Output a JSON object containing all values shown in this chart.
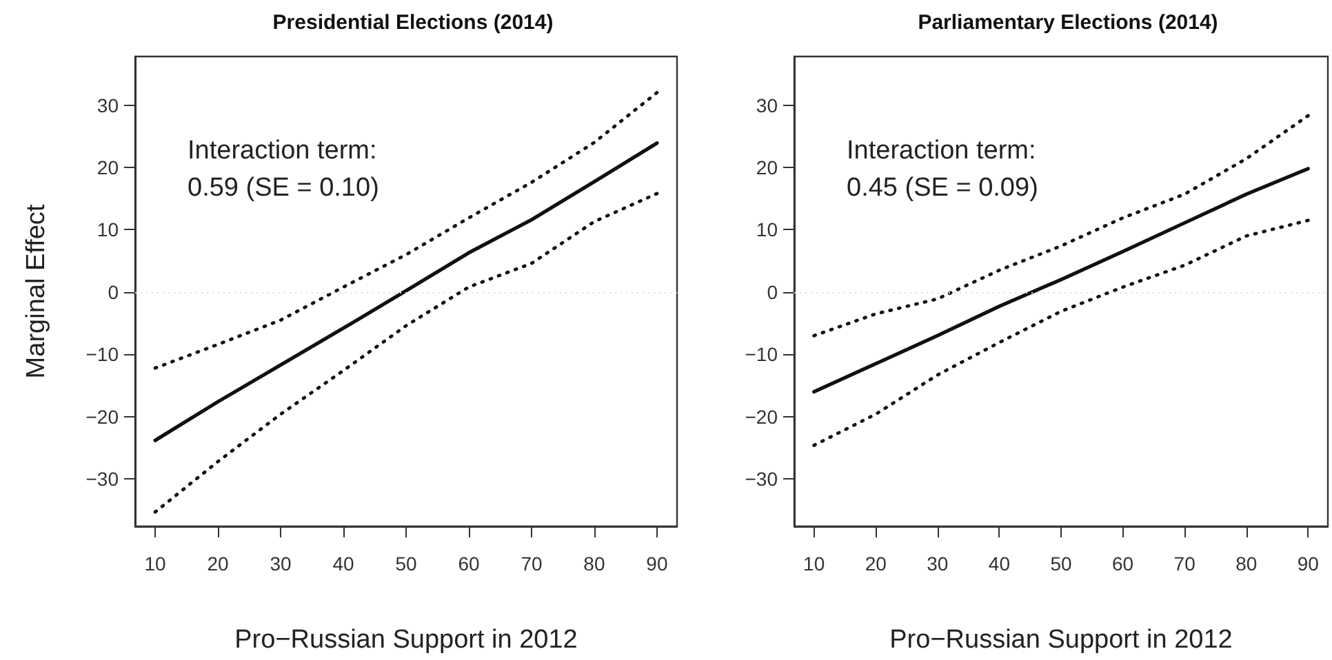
{
  "chart_data": [
    {
      "type": "line",
      "title": "Presidential Elections (2014)",
      "xlabel": "Pro−Russian Support in 2012",
      "ylabel": "Marginal Effect",
      "x": [
        10,
        20,
        30,
        40,
        50,
        60,
        70,
        80,
        90
      ],
      "series": [
        {
          "color": "#111111",
          "line_style": "solid",
          "values": [
            -23.8,
            -17.6,
            -11.7,
            -5.8,
            0.2,
            6.3,
            11.6,
            17.7,
            23.9
          ]
        },
        {
          "color": "#111111",
          "line_style": "dotted",
          "values": [
            -12.2,
            -8.4,
            -4.5,
            0.8,
            6.0,
            11.9,
            17.6,
            24.0,
            32.0
          ]
        },
        {
          "color": "#111111",
          "line_style": "dotted",
          "values": [
            -35.3,
            -27.2,
            -19.6,
            -12.6,
            -5.4,
            0.8,
            4.6,
            11.3,
            15.8
          ]
        }
      ],
      "xlim": [
        6.8,
        93.2
      ],
      "ylim": [
        -37.6,
        37.8
      ],
      "xticks": [
        10,
        20,
        30,
        40,
        50,
        60,
        70,
        80,
        90
      ],
      "yticks": [
        -30,
        -20,
        -10,
        0,
        10,
        20,
        30
      ],
      "ref_lines": [
        {
          "axis": "y",
          "value": 0,
          "color": "#dddddd",
          "line_style": "dotted"
        }
      ],
      "annotations": [
        "Interaction term:\n0.59 (SE = 0.10)"
      ],
      "marker": "none",
      "grid": false
    },
    {
      "type": "line",
      "title": "Parliamentary Elections (2014)",
      "xlabel": "Pro−Russian Support in 2012",
      "x": [
        10,
        20,
        30,
        40,
        50,
        60,
        70,
        80,
        90
      ],
      "series": [
        {
          "color": "#111111",
          "line_style": "solid",
          "values": [
            -16.0,
            -11.5,
            -7.0,
            -2.3,
            2.0,
            6.5,
            11.1,
            15.7,
            19.8
          ]
        },
        {
          "color": "#111111",
          "line_style": "dotted",
          "values": [
            -7.0,
            -3.5,
            -1.1,
            3.5,
            7.4,
            11.9,
            15.7,
            21.4,
            28.3
          ]
        },
        {
          "color": "#111111",
          "line_style": "dotted",
          "values": [
            -24.6,
            -19.6,
            -13.3,
            -8.1,
            -3.1,
            0.8,
            4.3,
            9.0,
            11.5
          ]
        }
      ],
      "xlim": [
        6.8,
        93.2
      ],
      "ylim": [
        -37.6,
        37.8
      ],
      "xticks": [
        10,
        20,
        30,
        40,
        50,
        60,
        70,
        80,
        90
      ],
      "yticks": [
        -30,
        -20,
        -10,
        0,
        10,
        20,
        30
      ],
      "ref_lines": [
        {
          "axis": "y",
          "value": 0,
          "color": "#dddddd",
          "line_style": "dotted"
        }
      ],
      "annotations": [
        "Interaction term:\n0.45 (SE = 0.09)"
      ],
      "marker": "none",
      "grid": false
    }
  ]
}
